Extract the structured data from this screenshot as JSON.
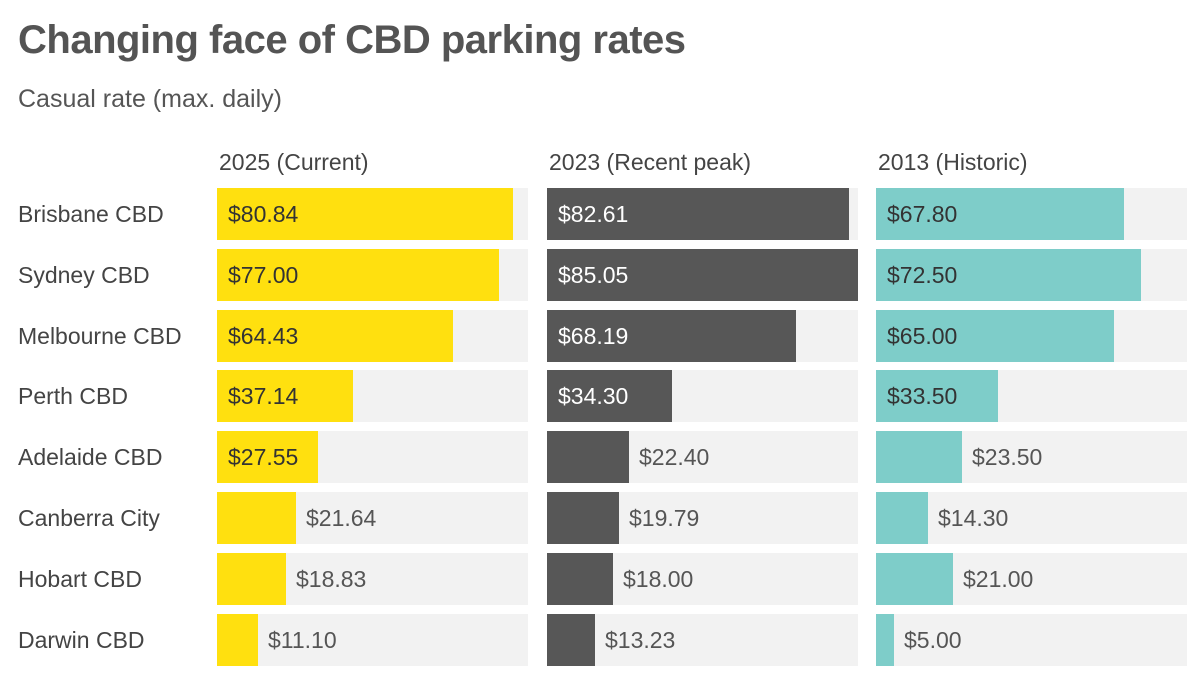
{
  "chart_data": {
    "type": "bar",
    "orientation": "horizontal",
    "layout": "small-multiples",
    "title": "Changing face of CBD parking rates",
    "subtitle": "Casual rate (max. daily)",
    "categories": [
      "Brisbane CBD",
      "Sydney CBD",
      "Melbourne CBD",
      "Perth CBD",
      "Adelaide CBD",
      "Canberra City",
      "Hobart CBD",
      "Darwin CBD"
    ],
    "xlim": [
      0,
      85.05
    ],
    "value_prefix": "$",
    "series": [
      {
        "name": "2025 (Current)",
        "color": "#ffe00f",
        "text_inside_color": "#333333",
        "values": [
          80.84,
          77.0,
          64.43,
          37.14,
          27.55,
          21.64,
          18.83,
          11.1
        ],
        "labels": [
          "$80.84",
          "$77.00",
          "$64.43",
          "$37.14",
          "$27.55",
          "$21.64",
          "$18.83",
          "$11.10"
        ]
      },
      {
        "name": "2023 (Recent peak)",
        "color": "#575757",
        "text_inside_color": "#ffffff",
        "values": [
          82.61,
          85.05,
          68.19,
          34.3,
          22.4,
          19.79,
          18.0,
          13.23
        ],
        "labels": [
          "$82.61",
          "$85.05",
          "$68.19",
          "$34.30",
          "$22.40",
          "$19.79",
          "$18.00",
          "$13.23"
        ]
      },
      {
        "name": "2013 (Historic)",
        "color": "#7ecdc9",
        "text_inside_color": "#333333",
        "values": [
          67.8,
          72.5,
          65.0,
          33.5,
          23.5,
          14.3,
          21.0,
          5.0
        ],
        "labels": [
          "$67.80",
          "$72.50",
          "$65.00",
          "$33.50",
          "$23.50",
          "$14.30",
          "$21.00",
          "$5.00"
        ]
      }
    ],
    "outside_label_color": "#555555",
    "track_color": "#f2f2f2",
    "grid": false,
    "legend": "none"
  }
}
